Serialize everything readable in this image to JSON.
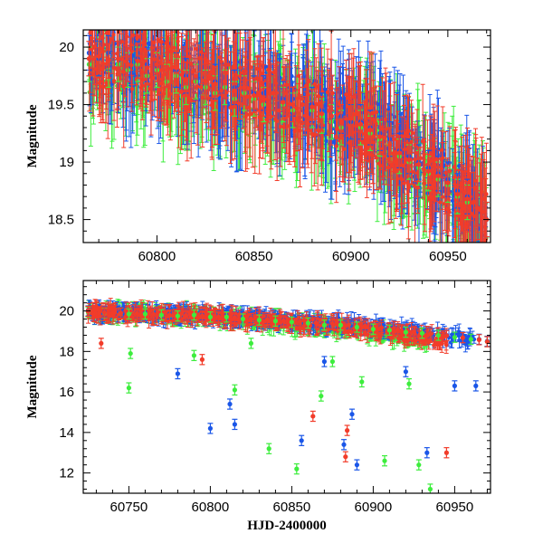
{
  "colors": {
    "green": "#3ded3d",
    "blue": "#1a56e8",
    "red": "#f23c2a",
    "frame": "#000000"
  },
  "chart_data": [
    {
      "type": "scatter",
      "title": "",
      "xlabel": "",
      "ylabel": "Magnitude",
      "xlim": [
        60762,
        60972
      ],
      "ylim": [
        20.15,
        18.3
      ],
      "y_inverted": true,
      "x_ticks": [
        "60800",
        "60850",
        "60900",
        "60950"
      ],
      "y_ticks": [
        "18.5",
        "19",
        "19.5",
        "20"
      ],
      "grid": false,
      "legend": "none",
      "series": [
        {
          "color": "green",
          "x": [
            60765,
            60770,
            60775,
            60780,
            60785,
            60790,
            60795,
            60800,
            60805,
            60810,
            60815,
            60820,
            60825,
            60830,
            60835,
            60840,
            60845,
            60850,
            60855,
            60860,
            60865,
            60870,
            60875,
            60880,
            60885,
            60890,
            60895,
            60900,
            60905,
            60910,
            60915,
            60920,
            60925,
            60930,
            60935,
            60940,
            60945,
            60950,
            60955,
            60960,
            60965,
            60970
          ],
          "y": [
            19.85,
            19.9,
            19.8,
            19.85,
            19.8,
            19.85,
            19.75,
            19.8,
            19.7,
            19.75,
            19.65,
            19.7,
            19.65,
            19.6,
            19.65,
            19.55,
            19.6,
            19.55,
            19.5,
            19.6,
            19.5,
            19.45,
            19.5,
            19.45,
            19.4,
            19.35,
            19.3,
            19.35,
            19.3,
            19.25,
            19.2,
            19.15,
            19.05,
            19.0,
            18.95,
            18.9,
            18.85,
            18.8,
            18.7,
            18.65,
            18.6,
            18.5
          ]
        },
        {
          "color": "blue",
          "x": [
            60765,
            60770,
            60775,
            60780,
            60785,
            60790,
            60795,
            60800,
            60805,
            60810,
            60815,
            60820,
            60825,
            60830,
            60835,
            60840,
            60845,
            60850,
            60855,
            60860,
            60865,
            60870,
            60875,
            60880,
            60885,
            60890,
            60895,
            60900,
            60905,
            60910,
            60915,
            60920,
            60925,
            60930,
            60935,
            60940,
            60945,
            60950,
            60955,
            60960,
            60965,
            60970
          ],
          "y": [
            19.95,
            19.9,
            19.95,
            19.9,
            19.85,
            19.9,
            19.85,
            19.85,
            19.8,
            19.8,
            19.75,
            19.75,
            19.7,
            19.7,
            19.7,
            19.65,
            19.65,
            19.6,
            19.6,
            19.6,
            19.55,
            19.55,
            19.5,
            19.5,
            19.45,
            19.4,
            19.4,
            19.35,
            19.35,
            19.3,
            19.25,
            19.2,
            19.1,
            19.05,
            19.0,
            18.95,
            18.9,
            18.85,
            18.75,
            18.7,
            18.6,
            18.5
          ]
        },
        {
          "color": "red",
          "x": [
            60765,
            60770,
            60775,
            60780,
            60785,
            60790,
            60795,
            60800,
            60805,
            60810,
            60815,
            60820,
            60825,
            60830,
            60835,
            60840,
            60845,
            60850,
            60855,
            60860,
            60865,
            60870,
            60875,
            60880,
            60885,
            60890,
            60895,
            60900,
            60905,
            60910,
            60915,
            60920,
            60925,
            60930,
            60935,
            60940,
            60945,
            60950,
            60955,
            60960,
            60965,
            60970
          ],
          "y": [
            19.9,
            19.92,
            19.88,
            19.9,
            19.85,
            19.88,
            19.82,
            19.85,
            19.8,
            19.82,
            19.72,
            19.75,
            19.7,
            19.68,
            19.7,
            19.62,
            19.65,
            19.58,
            19.55,
            19.6,
            19.52,
            19.5,
            19.5,
            19.48,
            19.42,
            19.4,
            19.35,
            19.38,
            19.33,
            19.28,
            19.22,
            19.15,
            19.08,
            19.02,
            18.98,
            18.92,
            18.88,
            18.82,
            18.72,
            18.68,
            18.6,
            18.5
          ]
        }
      ]
    },
    {
      "type": "scatter",
      "title": "",
      "xlabel": "HJD-2400000",
      "ylabel": "Magnitude",
      "xlim": [
        60722,
        60972
      ],
      "ylim": [
        21.5,
        11.0
      ],
      "y_inverted": true,
      "x_ticks": [
        "60750",
        "60800",
        "60850",
        "60900",
        "60950"
      ],
      "y_ticks": [
        "12",
        "14",
        "16",
        "18",
        "20"
      ],
      "grid": false,
      "legend": "none",
      "series": [
        {
          "color": "green",
          "x": [
            60725,
            60735,
            60745,
            60750,
            60760,
            60770,
            60780,
            60790,
            60800,
            60810,
            60820,
            60830,
            60840,
            60850,
            60860,
            60870,
            60880,
            60890,
            60900,
            60910,
            60920,
            60930,
            60940,
            60950,
            60960,
            60970,
            60750,
            60751,
            60790,
            60815,
            60825,
            60836,
            60853,
            60868,
            60875,
            60893,
            60907,
            60922,
            60928,
            60935
          ],
          "y": [
            19.95,
            19.9,
            19.9,
            19.85,
            19.85,
            19.8,
            19.75,
            19.8,
            19.7,
            19.7,
            19.6,
            19.55,
            19.5,
            19.45,
            19.4,
            19.3,
            19.3,
            19.2,
            19.1,
            19.05,
            18.95,
            18.9,
            18.8,
            18.7,
            18.6,
            18.5,
            16.2,
            17.9,
            17.8,
            16.1,
            18.4,
            13.2,
            12.2,
            15.8,
            17.5,
            16.5,
            12.6,
            16.4,
            12.4,
            11.2
          ]
        },
        {
          "color": "blue",
          "x": [
            60725,
            60735,
            60745,
            60755,
            60765,
            60775,
            60785,
            60795,
            60805,
            60815,
            60825,
            60835,
            60845,
            60855,
            60865,
            60875,
            60885,
            60895,
            60905,
            60915,
            60925,
            60935,
            60945,
            60955,
            60965,
            60970,
            60780,
            60800,
            60812,
            60815,
            60856,
            60870,
            60882,
            60887,
            60890,
            60920,
            60933,
            60950,
            60963
          ],
          "y": [
            20.0,
            19.95,
            19.95,
            19.9,
            19.85,
            19.85,
            19.8,
            19.8,
            19.75,
            19.7,
            19.65,
            19.6,
            19.55,
            19.5,
            19.45,
            19.4,
            19.35,
            19.3,
            19.2,
            19.1,
            19.0,
            18.9,
            18.8,
            18.7,
            18.6,
            18.5,
            16.9,
            14.2,
            15.4,
            14.4,
            13.6,
            17.5,
            13.4,
            14.9,
            12.4,
            17.0,
            13.0,
            16.3,
            16.3
          ]
        },
        {
          "color": "red",
          "x": [
            60725,
            60735,
            60745,
            60755,
            60765,
            60775,
            60785,
            60795,
            60805,
            60815,
            60825,
            60835,
            60845,
            60855,
            60865,
            60875,
            60885,
            60895,
            60905,
            60915,
            60925,
            60935,
            60945,
            60955,
            60965,
            60970,
            60733,
            60795,
            60863,
            60883,
            60884,
            60945
          ],
          "y": [
            19.98,
            19.92,
            19.9,
            19.88,
            19.84,
            19.8,
            19.78,
            19.76,
            19.72,
            19.68,
            19.62,
            19.58,
            19.52,
            19.48,
            19.42,
            19.38,
            19.32,
            19.26,
            19.18,
            19.08,
            18.98,
            18.88,
            18.78,
            18.68,
            18.58,
            18.48,
            18.4,
            17.6,
            14.8,
            12.8,
            14.1,
            13.0
          ]
        }
      ]
    }
  ]
}
